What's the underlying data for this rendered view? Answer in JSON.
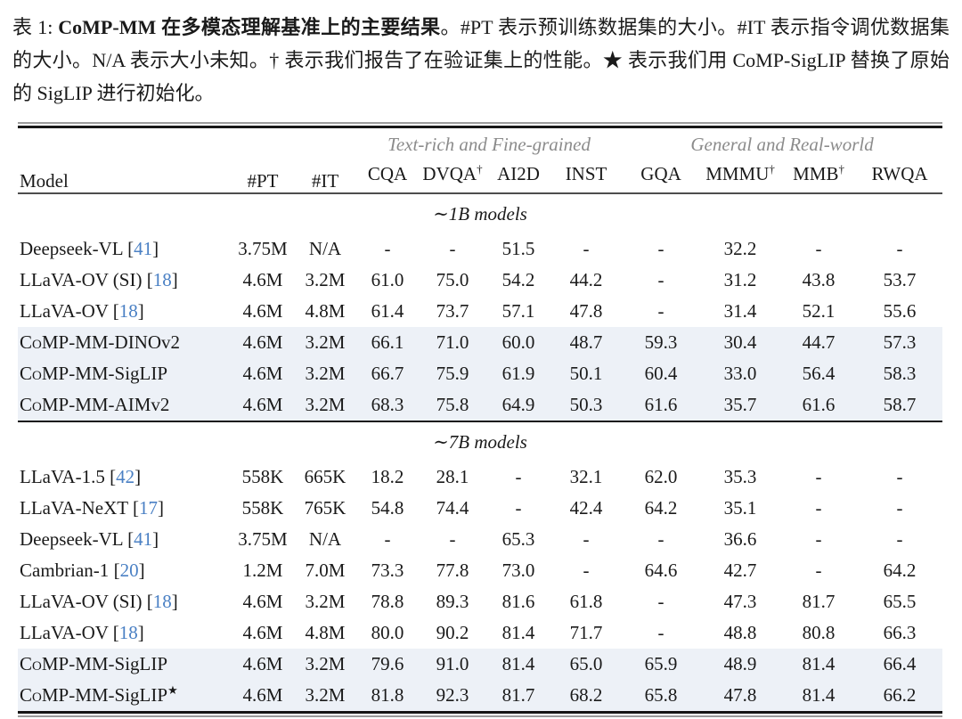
{
  "caption": {
    "prefix": "表 1: ",
    "bold": "CoMP-MM 在多模态理解基准上的主要结果",
    "rest": "。#PT 表示预训练数据集的大小。#IT 表示指令调优数据集的大小。N/A 表示大小未知。† 表示我们报告了在验证集上的性能。★ 表示我们用 CoMP-SigLIP 替换了原始的 SigLIP 进行初始化。"
  },
  "table": {
    "colors": {
      "highlight_bg": "#edf1f7",
      "citation_blue": "#4a80c4",
      "group_gray": "#8b8b8b"
    },
    "header": {
      "model": "Model",
      "pt": "#PT",
      "it": "#IT",
      "groups": [
        {
          "label": "Text-rich and Fine-grained"
        },
        {
          "label": "General and Real-world"
        }
      ],
      "benchmarks": [
        {
          "name": "CQA",
          "sup": ""
        },
        {
          "name": "DVQA",
          "sup": "†"
        },
        {
          "name": "AI2D",
          "sup": ""
        },
        {
          "name": "INST",
          "sup": ""
        },
        {
          "name": "GQA",
          "sup": ""
        },
        {
          "name": "MMMU",
          "sup": "†"
        },
        {
          "name": "MMB",
          "sup": "†"
        },
        {
          "name": "RWQA",
          "sup": ""
        }
      ]
    },
    "sections": [
      {
        "title": "∼1B models",
        "rows": [
          {
            "model": "Deepseek-VL",
            "cite": "41",
            "star": "",
            "pt": "3.75M",
            "it": "N/A",
            "values": [
              "-",
              "-",
              "51.5",
              "-",
              "-",
              "32.2",
              "-",
              "-"
            ],
            "highlight": false
          },
          {
            "model": "LLaVA-OV (SI)",
            "cite": "18",
            "star": "",
            "pt": "4.6M",
            "it": "3.2M",
            "values": [
              "61.0",
              "75.0",
              "54.2",
              "44.2",
              "-",
              "31.2",
              "43.8",
              "53.7"
            ],
            "highlight": false
          },
          {
            "model": "LLaVA-OV",
            "cite": "18",
            "star": "",
            "pt": "4.6M",
            "it": "4.8M",
            "values": [
              "61.4",
              "73.7",
              "57.1",
              "47.8",
              "-",
              "31.4",
              "52.1",
              "55.6"
            ],
            "highlight": false
          },
          {
            "model": "CoMP-MM-DINOv2",
            "cite": "",
            "star": "",
            "pt": "4.6M",
            "it": "3.2M",
            "values": [
              "66.1",
              "71.0",
              "60.0",
              "48.7",
              "59.3",
              "30.4",
              "44.7",
              "57.3"
            ],
            "highlight": true
          },
          {
            "model": "CoMP-MM-SigLIP",
            "cite": "",
            "star": "",
            "pt": "4.6M",
            "it": "3.2M",
            "values": [
              "66.7",
              "75.9",
              "61.9",
              "50.1",
              "60.4",
              "33.0",
              "56.4",
              "58.3"
            ],
            "highlight": true
          },
          {
            "model": "CoMP-MM-AIMv2",
            "cite": "",
            "star": "",
            "pt": "4.6M",
            "it": "3.2M",
            "values": [
              "68.3",
              "75.8",
              "64.9",
              "50.3",
              "61.6",
              "35.7",
              "61.6",
              "58.7"
            ],
            "highlight": true
          }
        ]
      },
      {
        "title": "∼7B models",
        "rows": [
          {
            "model": "LLaVA-1.5",
            "cite": "42",
            "star": "",
            "pt": "558K",
            "it": "665K",
            "values": [
              "18.2",
              "28.1",
              "-",
              "32.1",
              "62.0",
              "35.3",
              "-",
              "-"
            ],
            "highlight": false
          },
          {
            "model": "LLaVA-NeXT",
            "cite": "17",
            "star": "",
            "pt": "558K",
            "it": "765K",
            "values": [
              "54.8",
              "74.4",
              "-",
              "42.4",
              "64.2",
              "35.1",
              "-",
              "-"
            ],
            "highlight": false
          },
          {
            "model": "Deepseek-VL",
            "cite": "41",
            "star": "",
            "pt": "3.75M",
            "it": "N/A",
            "values": [
              "-",
              "-",
              "65.3",
              "-",
              "-",
              "36.6",
              "-",
              "-"
            ],
            "highlight": false
          },
          {
            "model": "Cambrian-1",
            "cite": "20",
            "star": "",
            "pt": "1.2M",
            "it": "7.0M",
            "values": [
              "73.3",
              "77.8",
              "73.0",
              "-",
              "64.6",
              "42.7",
              "-",
              "64.2"
            ],
            "highlight": false
          },
          {
            "model": "LLaVA-OV (SI)",
            "cite": "18",
            "star": "",
            "pt": "4.6M",
            "it": "3.2M",
            "values": [
              "78.8",
              "89.3",
              "81.6",
              "61.8",
              "-",
              "47.3",
              "81.7",
              "65.5"
            ],
            "highlight": false
          },
          {
            "model": "LLaVA-OV",
            "cite": "18",
            "star": "",
            "pt": "4.6M",
            "it": "4.8M",
            "values": [
              "80.0",
              "90.2",
              "81.4",
              "71.7",
              "-",
              "48.8",
              "80.8",
              "66.3"
            ],
            "highlight": false
          },
          {
            "model": "CoMP-MM-SigLIP",
            "cite": "",
            "star": "",
            "pt": "4.6M",
            "it": "3.2M",
            "values": [
              "79.6",
              "91.0",
              "81.4",
              "65.0",
              "65.9",
              "48.9",
              "81.4",
              "66.4"
            ],
            "highlight": true
          },
          {
            "model": "CoMP-MM-SigLIP",
            "cite": "",
            "star": "★",
            "pt": "4.6M",
            "it": "3.2M",
            "values": [
              "81.8",
              "92.3",
              "81.7",
              "68.2",
              "65.8",
              "47.8",
              "81.4",
              "66.2"
            ],
            "highlight": true
          }
        ]
      }
    ]
  }
}
